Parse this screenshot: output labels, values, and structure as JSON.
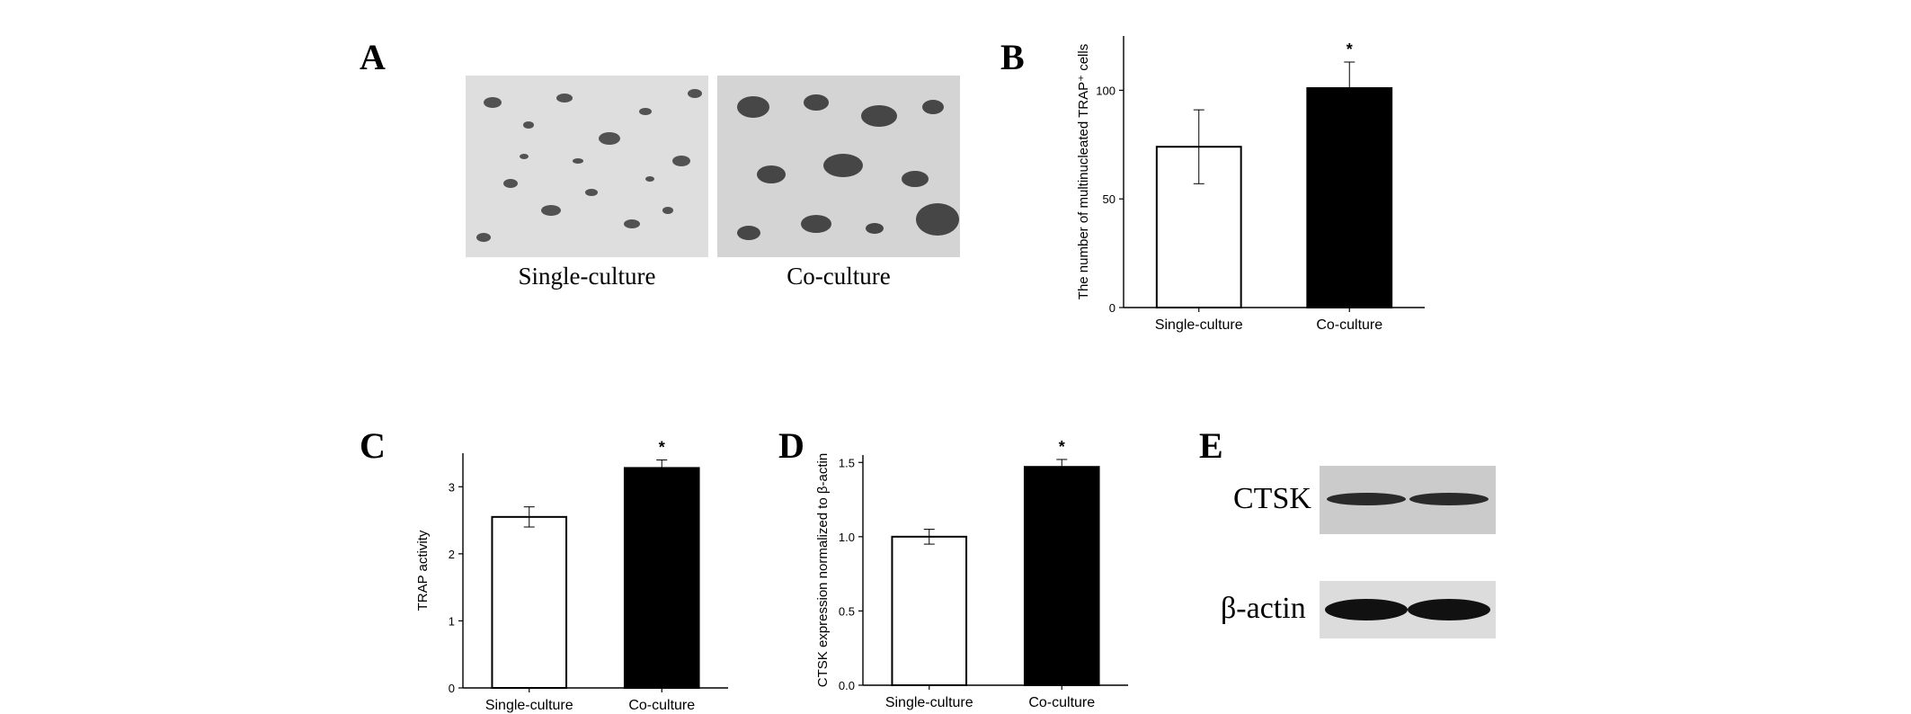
{
  "panels": {
    "a": {
      "letter": "A",
      "captions": [
        "Single-culture",
        "Co-culture"
      ]
    },
    "b": {
      "letter": "B"
    },
    "c": {
      "letter": "C"
    },
    "d": {
      "letter": "D"
    },
    "e": {
      "letter": "E",
      "bands": [
        "CTSK",
        "β-actin"
      ]
    }
  },
  "chart_data": [
    {
      "panel": "B",
      "type": "bar",
      "categories": [
        "Single-culture",
        "Co-culture"
      ],
      "values": [
        74,
        101
      ],
      "errors": [
        17,
        12
      ],
      "significance": [
        "",
        "*"
      ],
      "ylabel": "The number of multinucleated TRAP⁺ cells",
      "xlabel": "",
      "ylim": [
        0,
        125
      ],
      "yticks": [
        0,
        50,
        100
      ],
      "bar_colors": [
        "#ffffff",
        "#000000"
      ]
    },
    {
      "panel": "C",
      "type": "bar",
      "categories": [
        "Single-culture",
        "Co-culture"
      ],
      "values": [
        2.55,
        3.28
      ],
      "errors": [
        0.15,
        0.12
      ],
      "significance": [
        "",
        "*"
      ],
      "ylabel": "TRAP activity",
      "xlabel": "",
      "ylim": [
        0,
        3.5
      ],
      "yticks": [
        0,
        1,
        2,
        3
      ],
      "bar_colors": [
        "#ffffff",
        "#000000"
      ]
    },
    {
      "panel": "D",
      "type": "bar",
      "categories": [
        "Single-culture",
        "Co-culture"
      ],
      "values": [
        1.0,
        1.47
      ],
      "errors": [
        0.05,
        0.05
      ],
      "significance": [
        "",
        "*"
      ],
      "ylabel": "CTSK expression normalized to β-actin",
      "xlabel": "",
      "ylim": [
        0,
        1.55
      ],
      "yticks": [
        "0.0",
        "0.5",
        "1.0",
        "1.5"
      ],
      "bar_colors": [
        "#ffffff",
        "#000000"
      ]
    }
  ]
}
